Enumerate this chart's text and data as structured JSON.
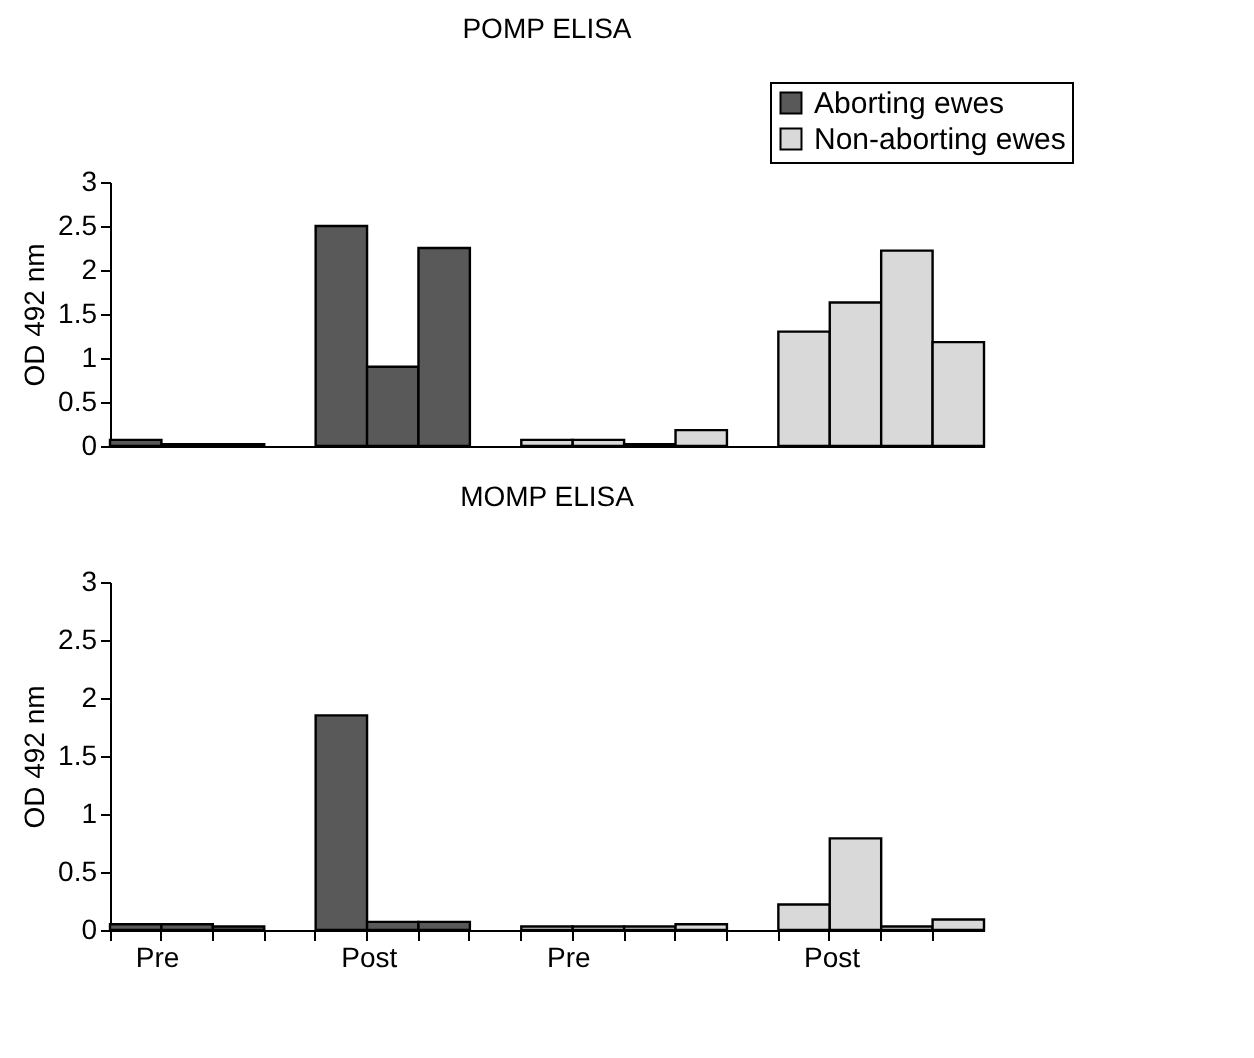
{
  "chart_data": [
    {
      "type": "bar",
      "title": "POMP ELISA",
      "ylabel": "OD 492 nm",
      "categories": [
        "Pre",
        null,
        null,
        null,
        "Post",
        null,
        null,
        null,
        "Pre",
        null,
        null,
        null,
        null,
        "Post",
        null,
        null,
        null
      ],
      "series": [
        {
          "name": "Aborting ewes",
          "color": "#595959",
          "values": [
            0.07,
            0.02,
            0.02,
            null,
            2.5,
            0.9,
            2.25,
            null,
            null,
            null,
            null,
            null,
            null,
            null,
            null,
            null,
            null
          ]
        },
        {
          "name": "Non-aborting ewes",
          "color": "#d9d9d9",
          "values": [
            null,
            null,
            null,
            null,
            null,
            null,
            null,
            null,
            0.07,
            0.07,
            0.02,
            0.18,
            null,
            1.3,
            1.63,
            2.22,
            1.18
          ]
        }
      ],
      "ylim": [
        0,
        3
      ],
      "yticks": [
        0,
        0.5,
        1,
        1.5,
        2,
        2.5,
        3
      ],
      "legend": "top right",
      "tick_labels": "y"
    },
    {
      "type": "bar",
      "title": "MOMP ELISA",
      "ylabel": "OD 492 nm",
      "categories": [
        "Pre",
        null,
        null,
        null,
        "Post",
        null,
        null,
        null,
        "Pre",
        null,
        null,
        null,
        null,
        "Post",
        null,
        null,
        null
      ],
      "series": [
        {
          "name": "Aborting ewes",
          "color": "#595959",
          "values": [
            0.05,
            0.05,
            0.03,
            null,
            1.85,
            0.07,
            0.07,
            null,
            null,
            null,
            null,
            null,
            null,
            null,
            null,
            null,
            null
          ]
        },
        {
          "name": "Non-aborting ewes",
          "color": "#d9d9d9",
          "values": [
            null,
            null,
            null,
            null,
            null,
            null,
            null,
            null,
            0.03,
            0.03,
            0.03,
            0.05,
            null,
            0.22,
            0.79,
            0.03,
            0.09
          ]
        }
      ],
      "ylim": [
        0,
        3
      ],
      "yticks": [
        0,
        0.5,
        1,
        1.5,
        2,
        2.5,
        3
      ],
      "legend": "top right"
    }
  ]
}
